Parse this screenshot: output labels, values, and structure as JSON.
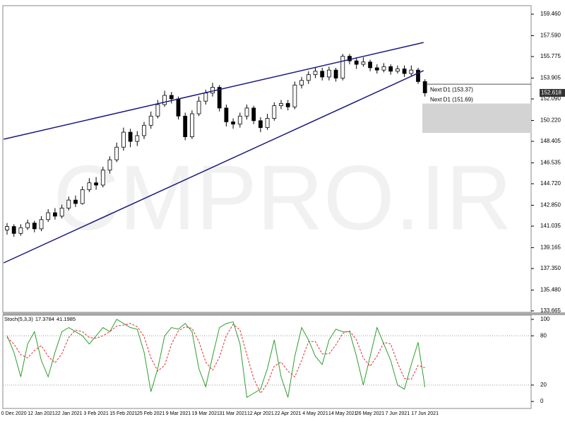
{
  "chart_data": [
    {
      "type": "candlestick",
      "watermark": "CMPRO.IR",
      "categories": [
        null,
        "0 Dec 2020",
        null,
        null,
        null,
        "12 Jan 2021",
        null,
        null,
        null,
        "22 Jan 2021",
        null,
        null,
        null,
        "3 Feb 2021",
        null,
        null,
        null,
        "15 Feb 2021",
        null,
        null,
        null,
        "25 Feb 2021",
        null,
        null,
        null,
        "9 Mar 2021",
        null,
        null,
        null,
        "19 Mar 2021",
        null,
        null,
        null,
        "31 Mar 2021",
        null,
        null,
        null,
        "12 Apr 2021",
        null,
        null,
        null,
        "22 Apr 2021",
        null,
        null,
        null,
        "4 May 2021",
        null,
        null,
        null,
        "14 May 2021",
        null,
        null,
        null,
        "26 May 2021",
        null,
        null,
        null,
        "7 Jun 2021",
        null,
        null,
        null,
        "17 Jun 2021"
      ],
      "open": [
        140.7,
        141.0,
        140.4,
        140.9,
        141.3,
        140.8,
        141.6,
        142.2,
        141.9,
        142.6,
        143.3,
        143.0,
        144.2,
        144.8,
        144.6,
        145.9,
        146.8,
        147.9,
        149.2,
        148.4,
        148.9,
        149.8,
        150.6,
        151.6,
        152.4,
        152.1,
        150.6,
        148.8,
        150.8,
        151.9,
        152.6,
        153.1,
        151.3,
        150.1,
        149.9,
        150.6,
        151.3,
        150.2,
        149.6,
        150.4,
        151.5,
        151.7,
        151.4,
        153.3,
        153.7,
        154.2,
        154.5,
        154.0,
        154.6,
        153.9,
        155.8,
        155.4,
        155.1,
        155.3,
        154.8,
        154.6,
        154.9,
        154.5,
        154.7,
        154.3,
        154.6,
        153.6
      ],
      "high": [
        141.3,
        141.2,
        141.2,
        141.6,
        141.5,
        141.9,
        142.5,
        142.6,
        142.9,
        143.6,
        143.7,
        144.5,
        145.2,
        145.3,
        146.2,
        147.1,
        148.3,
        149.6,
        149.5,
        149.3,
        150.1,
        151.0,
        152.0,
        152.8,
        152.7,
        152.3,
        150.9,
        151.1,
        152.3,
        152.9,
        153.5,
        153.3,
        151.6,
        150.4,
        150.9,
        151.6,
        151.5,
        150.5,
        150.8,
        151.8,
        152.0,
        152.0,
        153.6,
        154.0,
        154.5,
        154.8,
        154.8,
        154.9,
        154.8,
        156.0,
        156.0,
        155.7,
        155.7,
        155.5,
        155.1,
        155.2,
        155.1,
        155.0,
        155.0,
        155.0,
        154.8,
        153.8
      ],
      "low": [
        140.3,
        140.1,
        140.2,
        140.7,
        140.5,
        140.6,
        141.4,
        141.6,
        141.7,
        142.4,
        142.7,
        142.9,
        144.0,
        144.2,
        144.4,
        145.6,
        146.6,
        147.6,
        147.9,
        148.0,
        148.6,
        149.5,
        150.4,
        151.4,
        151.7,
        150.3,
        148.5,
        148.6,
        150.6,
        151.6,
        152.3,
        151.0,
        149.7,
        149.5,
        149.6,
        150.3,
        149.9,
        149.2,
        149.4,
        150.2,
        151.2,
        151.1,
        151.2,
        153.0,
        153.4,
        153.9,
        153.7,
        153.7,
        153.6,
        153.7,
        155.1,
        154.7,
        154.9,
        154.5,
        154.3,
        154.4,
        154.2,
        154.3,
        154.0,
        154.1,
        153.4,
        152.3
      ],
      "close": [
        141.0,
        140.4,
        140.9,
        141.3,
        140.8,
        141.6,
        142.2,
        141.9,
        142.6,
        143.3,
        143.0,
        144.2,
        144.8,
        144.6,
        145.9,
        146.8,
        147.9,
        149.2,
        148.4,
        148.9,
        149.8,
        150.6,
        151.6,
        152.4,
        152.1,
        150.6,
        148.8,
        150.8,
        151.9,
        152.6,
        153.1,
        151.3,
        150.1,
        149.9,
        150.6,
        151.3,
        150.2,
        149.6,
        150.4,
        151.5,
        151.7,
        151.4,
        153.3,
        153.7,
        154.2,
        154.5,
        154.0,
        154.6,
        153.9,
        155.8,
        155.4,
        155.1,
        155.3,
        154.8,
        154.6,
        154.9,
        154.5,
        154.7,
        154.3,
        154.6,
        153.6,
        152.618
      ],
      "trendlines": [
        {
          "x": [
            -0.5,
            60.8
          ],
          "y": [
            148.59,
            157.0
          ],
          "color": "#1a1a80"
        },
        {
          "x": [
            -0.5,
            60.8
          ],
          "y": [
            137.84,
            154.55
          ],
          "color": "#1a1a80"
        }
      ],
      "annotations": [
        {
          "label": "Next D1 (153.37)",
          "value": 153.37
        },
        {
          "label": "Next D1 (151.69)",
          "value": 151.69,
          "low": 149.14
        }
      ],
      "ylim": [
        133.54,
        160.2
      ],
      "yticks": [
        {
          "value": 159.46,
          "label": "159.460"
        },
        {
          "value": 157.59,
          "label": "157.590"
        },
        155.775,
        153.905,
        {
          "value": 152.09,
          "label": "152.090"
        },
        {
          "value": 150.22,
          "label": "150.220"
        },
        148.405,
        146.535,
        {
          "value": 144.72,
          "label": "144.720"
        },
        {
          "value": 142.85,
          "label": "142.850"
        },
        141.035,
        139.165,
        {
          "value": 137.35,
          "label": "137.350"
        },
        {
          "value": 135.48,
          "label": "135.480"
        },
        133.665
      ]
    },
    {
      "type": "line",
      "title": "Stoch(5,3,3)",
      "series": [
        {
          "color": "#2e9e2e",
          "dash": false,
          "values": [
            80,
            60,
            30,
            70,
            85,
            50,
            30,
            60,
            85,
            90,
            85,
            80,
            70,
            80,
            90,
            85,
            100,
            95,
            90,
            88,
            60,
            12,
            40,
            80,
            90,
            88,
            95,
            85,
            40,
            18,
            55,
            90,
            95,
            97,
            70,
            5,
            10,
            15,
            40,
            75,
            30,
            5,
            55,
            90,
            75,
            55,
            45,
            75,
            88,
            85,
            85,
            55,
            20,
            55,
            90,
            70,
            50,
            20,
            15,
            45,
            72,
            17.3784
          ]
        },
        {
          "color": "#e03030",
          "dash": true,
          "values": [
            78,
            70,
            57,
            53,
            62,
            68,
            55,
            47,
            58,
            78,
            87,
            85,
            78,
            77,
            80,
            85,
            92,
            93,
            95,
            91,
            79,
            53,
            37,
            44,
            70,
            86,
            91,
            89,
            73,
            48,
            38,
            54,
            80,
            94,
            87,
            57,
            28,
            10,
            22,
            43,
            48,
            37,
            30,
            50,
            73,
            73,
            58,
            58,
            69,
            83,
            86,
            75,
            53,
            43,
            55,
            72,
            70,
            47,
            28,
            27,
            44,
            41.1985
          ]
        }
      ],
      "ylim": [
        -8.5,
        105.1
      ],
      "yticks": [
        0,
        20,
        80,
        100
      ]
    }
  ]
}
